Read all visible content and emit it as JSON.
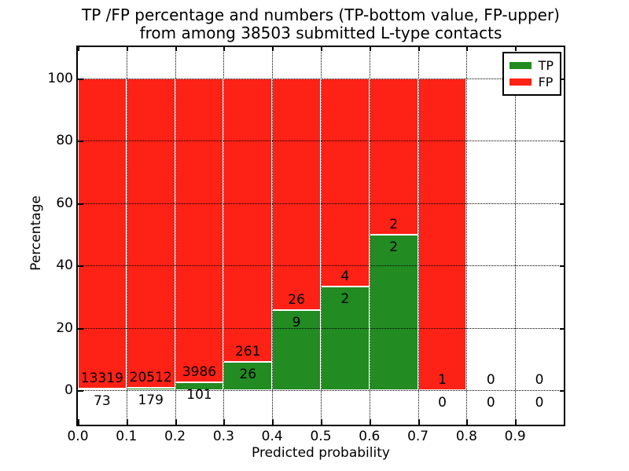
{
  "chart_data": {
    "type": "bar",
    "stacked": true,
    "normalization": "each bin scaled to 100 percent",
    "title_lines": [
      "TP /FP percentage and numbers (TP-bottom value, FP-upper)",
      "from among 38503 submitted L-type contacts"
    ],
    "total_submitted": 38503,
    "xlabel": "Predicted probability",
    "ylabel": "Percentage",
    "xlim": [
      0.0,
      1.0
    ],
    "ylim": [
      -11,
      110
    ],
    "bin_width": 0.1,
    "xticks": [
      {
        "value": 0.0,
        "label": "0.0"
      },
      {
        "value": 0.1,
        "label": "0.1"
      },
      {
        "value": 0.2,
        "label": "0.2"
      },
      {
        "value": 0.3,
        "label": "0.3"
      },
      {
        "value": 0.4,
        "label": "0.4"
      },
      {
        "value": 0.5,
        "label": "0.5"
      },
      {
        "value": 0.6,
        "label": "0.6"
      },
      {
        "value": 0.7,
        "label": "0.7"
      },
      {
        "value": 0.8,
        "label": "0.8"
      },
      {
        "value": 0.9,
        "label": "0.9"
      }
    ],
    "yticks": [
      {
        "value": 0,
        "label": "0"
      },
      {
        "value": 20,
        "label": "20"
      },
      {
        "value": 40,
        "label": "40"
      },
      {
        "value": 60,
        "label": "60"
      },
      {
        "value": 80,
        "label": "80"
      },
      {
        "value": 100,
        "label": "100"
      }
    ],
    "bins": [
      {
        "range": "0.0-0.1",
        "x0": 0.0,
        "tp": 73,
        "fp": 13319
      },
      {
        "range": "0.1-0.2",
        "x0": 0.1,
        "tp": 179,
        "fp": 20512
      },
      {
        "range": "0.2-0.3",
        "x0": 0.2,
        "tp": 101,
        "fp": 3986
      },
      {
        "range": "0.3-0.4",
        "x0": 0.3,
        "tp": 26,
        "fp": 261
      },
      {
        "range": "0.4-0.5",
        "x0": 0.4,
        "tp": 9,
        "fp": 26
      },
      {
        "range": "0.5-0.6",
        "x0": 0.5,
        "tp": 2,
        "fp": 4
      },
      {
        "range": "0.6-0.7",
        "x0": 0.6,
        "tp": 2,
        "fp": 2
      },
      {
        "range": "0.7-0.8",
        "x0": 0.7,
        "tp": 0,
        "fp": 1
      },
      {
        "range": "0.8-0.9",
        "x0": 0.8,
        "tp": 0,
        "fp": 0
      },
      {
        "range": "0.9-1.0",
        "x0": 0.9,
        "tp": 0,
        "fp": 0
      }
    ],
    "legend": {
      "position": "upper-right",
      "entries": [
        {
          "name": "TP",
          "color": "#228b22"
        },
        {
          "name": "FP",
          "color": "#fe2116"
        }
      ]
    },
    "grid": {
      "show": true,
      "linestyle": "dotted",
      "color": "#000000"
    }
  },
  "colors": {
    "tp": "#228b22",
    "fp": "#fe2116",
    "bar_edge": "#ffffff",
    "axis": "#000000",
    "text": "#000000",
    "background": "#ffffff"
  }
}
